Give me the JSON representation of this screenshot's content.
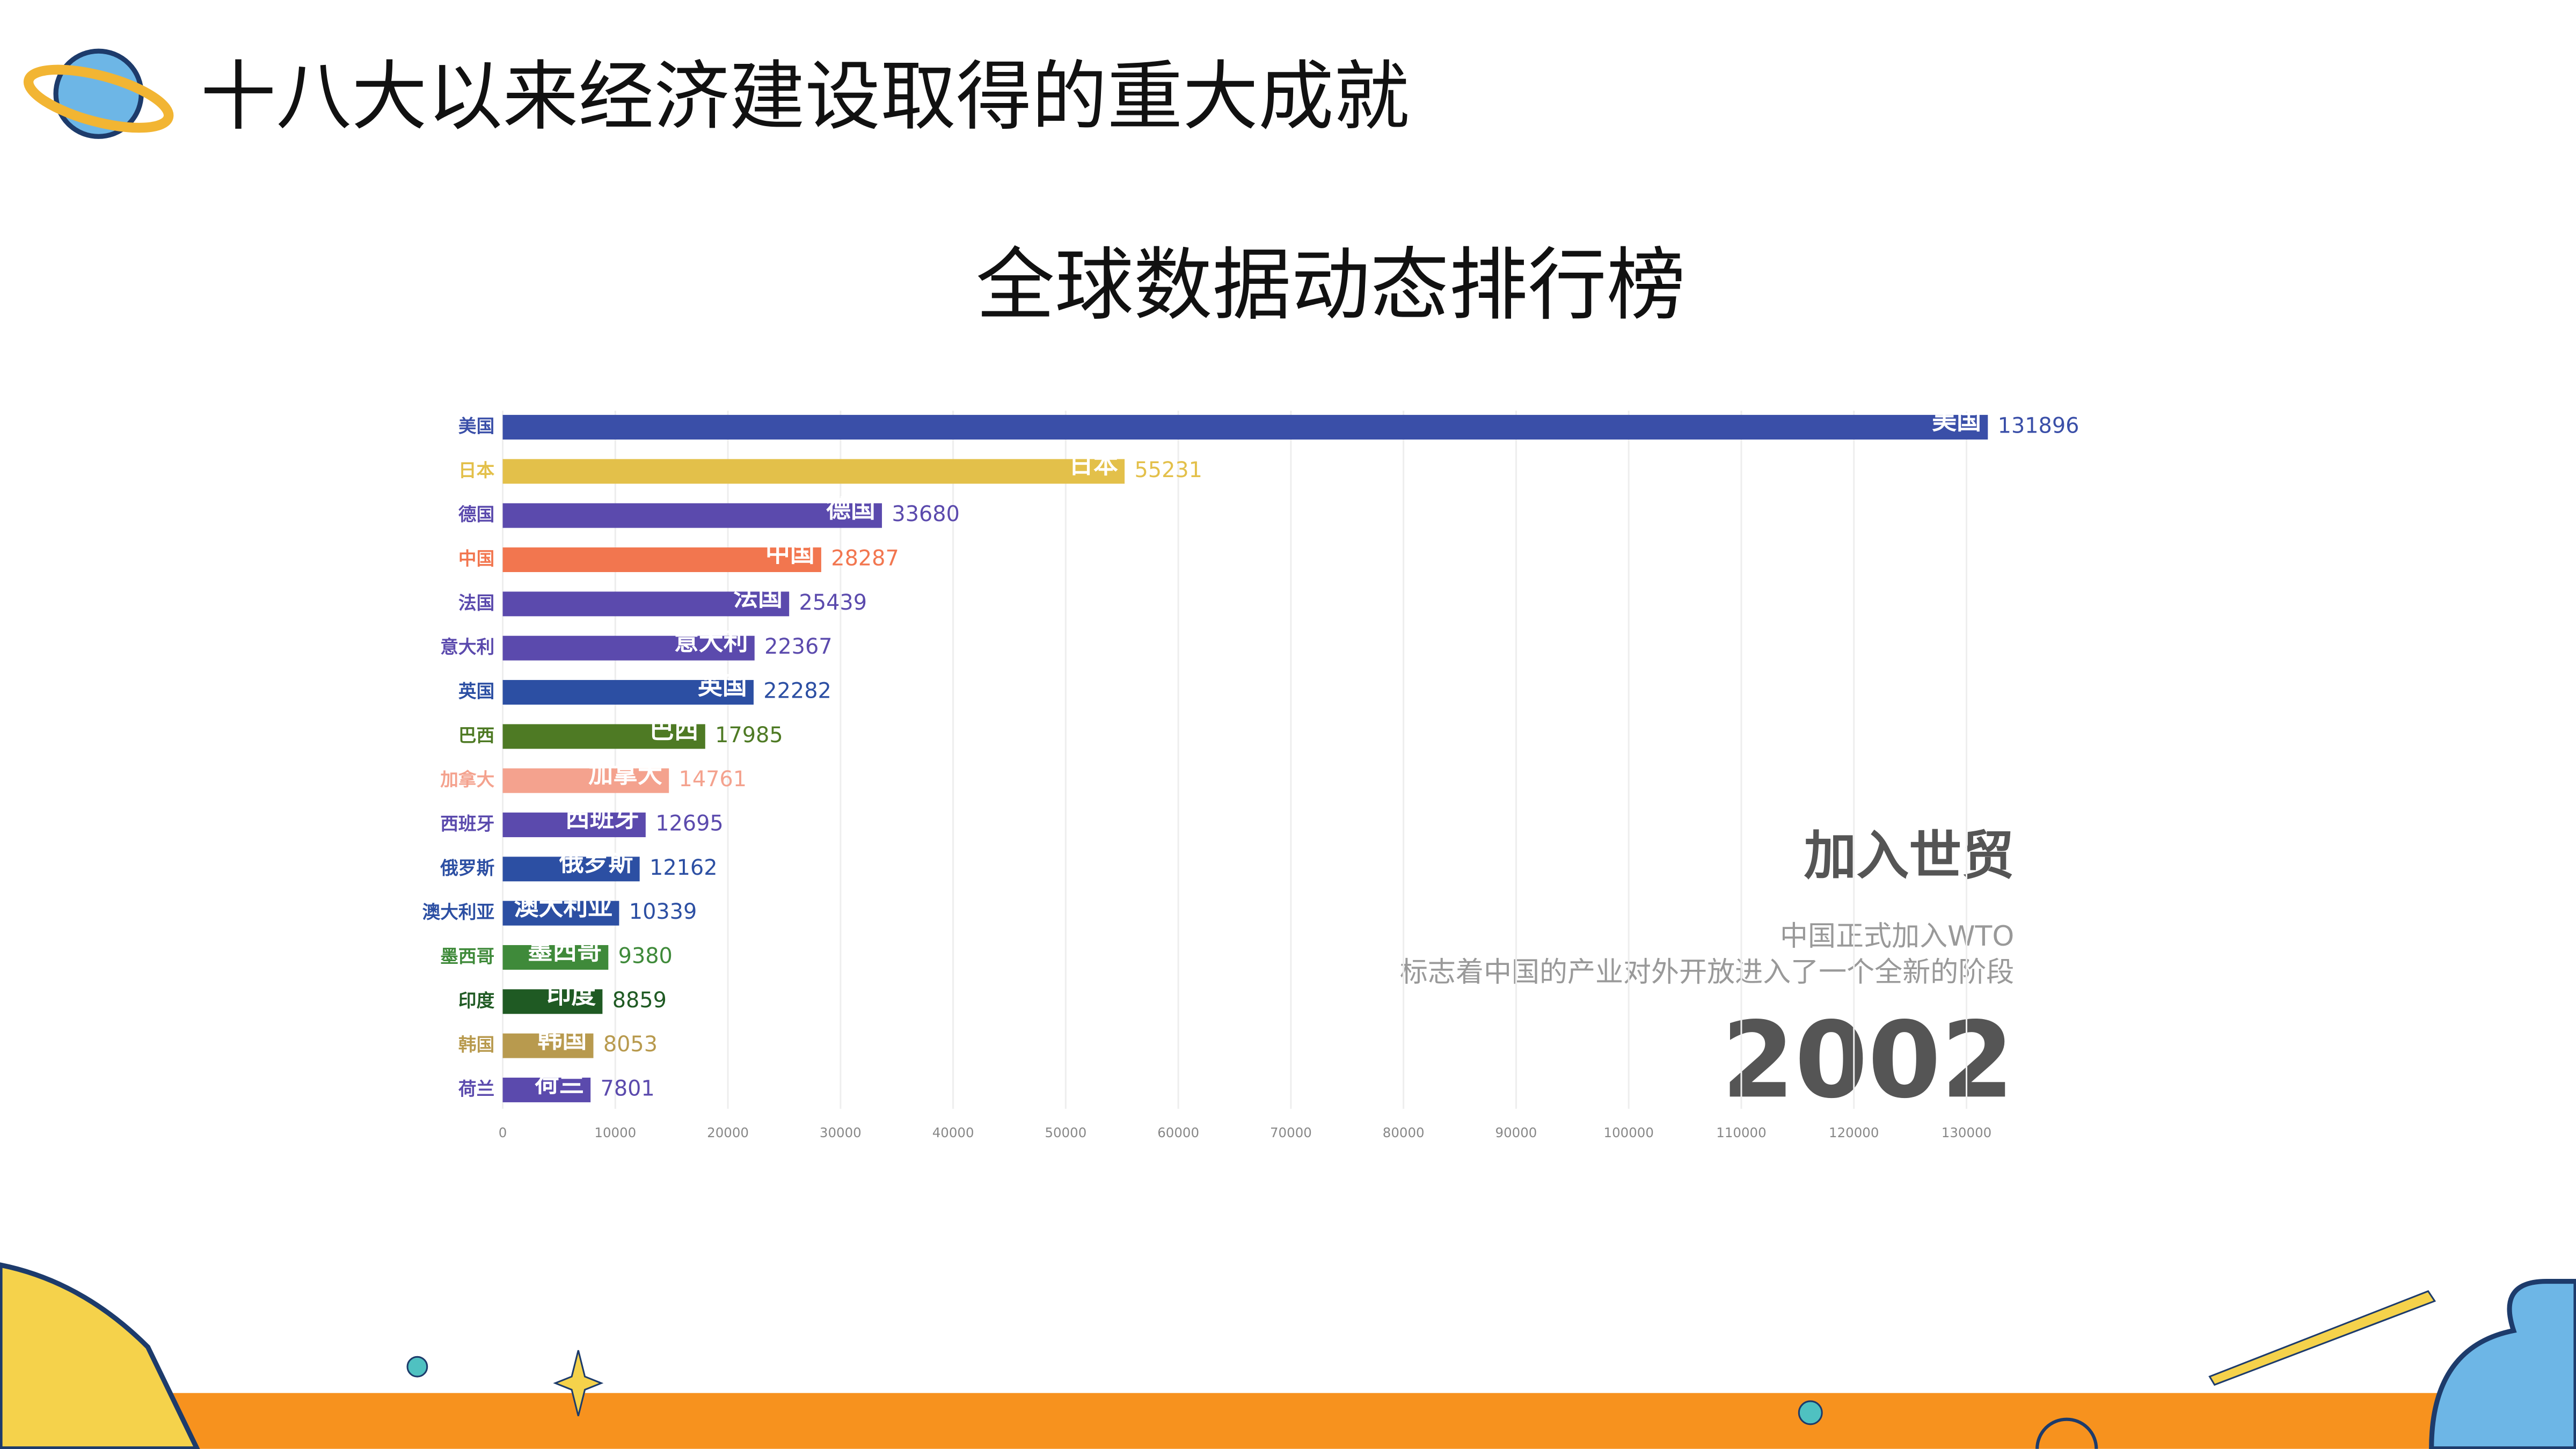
{
  "header": {
    "title": "十八大以来经济建设取得的重大成就"
  },
  "chart_data": {
    "type": "bar",
    "orientation": "horizontal",
    "title": "全球数据动态排行榜",
    "categories": [
      "美国",
      "日本",
      "德国",
      "中国",
      "法国",
      "意大利",
      "英国",
      "巴西",
      "加拿大",
      "西班牙",
      "俄罗斯",
      "澳大利亚",
      "墨西哥",
      "印度",
      "韩国",
      "荷兰"
    ],
    "values": [
      131896,
      55231,
      33680,
      28287,
      25439,
      22367,
      22282,
      17985,
      14761,
      12695,
      12162,
      10339,
      9380,
      8859,
      8053,
      7801
    ],
    "colors": [
      "#3a4fa8",
      "#e3c04a",
      "#5b4aad",
      "#f2764f",
      "#5b4aad",
      "#5b4aad",
      "#2c4fa3",
      "#4e7a24",
      "#f4a28e",
      "#5b4aad",
      "#2c4fa3",
      "#2c4fa3",
      "#3f8a3a",
      "#1f5a23",
      "#b89a4e",
      "#5b4aad"
    ],
    "xlim": [
      0,
      130000
    ],
    "xticks": [
      0,
      10000,
      20000,
      30000,
      40000,
      50000,
      60000,
      70000,
      80000,
      90000,
      100000,
      110000,
      120000,
      130000
    ],
    "grid": true,
    "annotation": {
      "title": "加入世贸",
      "lines": [
        "中国正式加入WTO",
        "标志着中国的产业对外开放进入了一个全新的阶段"
      ],
      "year": "2002"
    }
  }
}
